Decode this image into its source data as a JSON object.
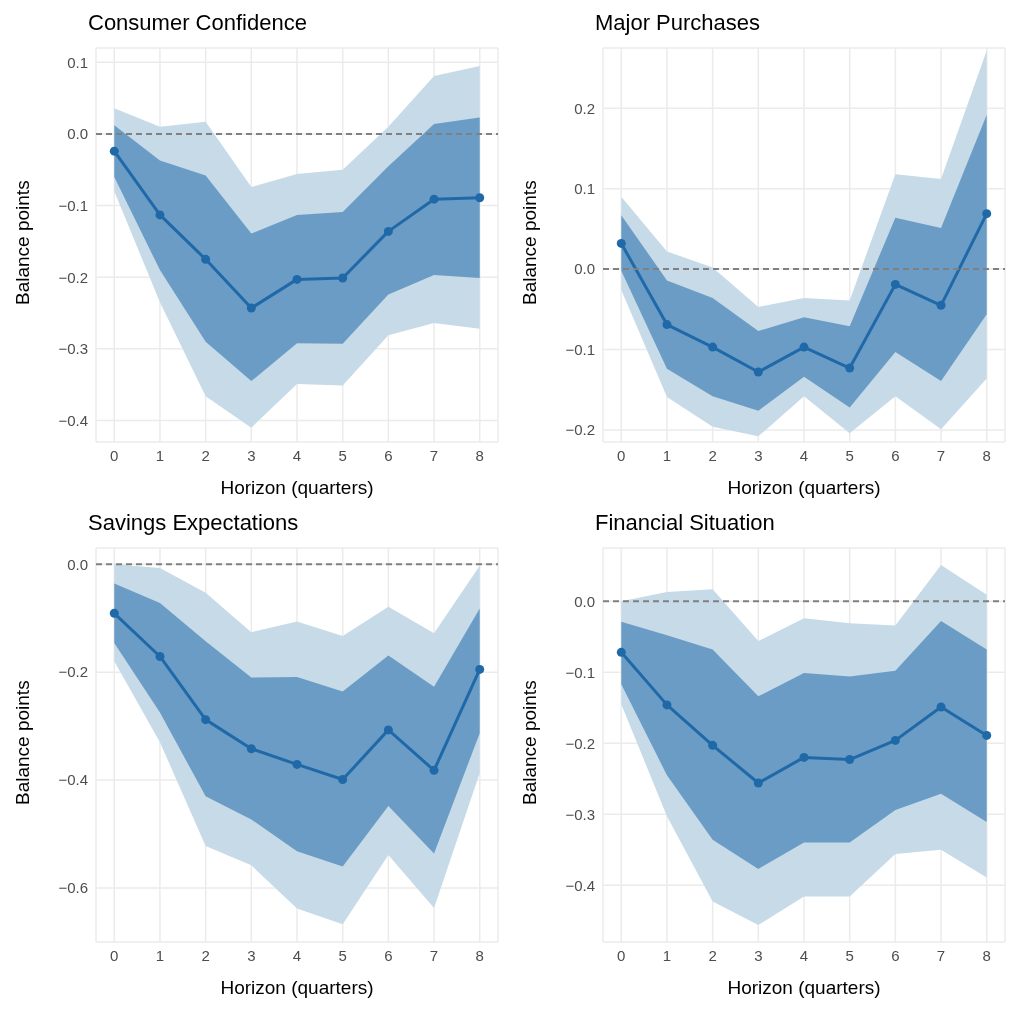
{
  "chart_data": [
    {
      "type": "line",
      "title": "Consumer Confidence",
      "xlabel": "Horizon (quarters)",
      "ylabel": "Balance points",
      "x": [
        0,
        1,
        2,
        3,
        4,
        5,
        6,
        7,
        8
      ],
      "xlim": [
        -0.4,
        8.4
      ],
      "xticks": [
        0,
        1,
        2,
        3,
        4,
        5,
        6,
        7,
        8
      ],
      "ylim": [
        -0.43,
        0.12
      ],
      "yticks": [
        {
          "value": -0.4,
          "label": "−0.4"
        },
        {
          "value": -0.3,
          "label": "−0.3"
        },
        {
          "value": -0.2,
          "label": "−0.2"
        },
        {
          "value": -0.1,
          "label": "−0.1"
        },
        {
          "value": 0,
          "label": "0.0"
        },
        {
          "value": 0.1,
          "label": "0.1"
        }
      ],
      "grid": true,
      "marker": "circle",
      "ref_lines": [
        {
          "axis": "y",
          "value": 0,
          "color": "#808080",
          "line_style": "dashed"
        }
      ],
      "series": [
        {
          "color": "#c6dae8",
          "values": [
            null,
            null,
            null,
            null,
            null,
            null,
            null,
            null,
            null
          ],
          "lower": [
            -0.08,
            -0.235,
            -0.366,
            -0.41,
            -0.349,
            -0.351,
            -0.281,
            -0.264,
            -0.272
          ],
          "upper": [
            0.036,
            0.01,
            0.017,
            -0.074,
            -0.056,
            -0.05,
            0.01,
            0.081,
            0.095
          ]
        },
        {
          "color": "#2069a8",
          "values": [
            -0.024,
            -0.113,
            -0.175,
            -0.243,
            -0.203,
            -0.201,
            -0.136,
            -0.091,
            -0.089
          ],
          "lower": [
            -0.06,
            -0.19,
            -0.29,
            -0.345,
            -0.292,
            -0.293,
            -0.224,
            -0.197,
            -0.201
          ],
          "upper": [
            0.012,
            -0.037,
            -0.058,
            -0.139,
            -0.113,
            -0.109,
            -0.045,
            0.014,
            0.023
          ]
        }
      ]
    },
    {
      "type": "line",
      "title": "Major Purchases",
      "xlabel": "Horizon (quarters)",
      "ylabel": "Balance points",
      "x": [
        0,
        1,
        2,
        3,
        4,
        5,
        6,
        7,
        8
      ],
      "xlim": [
        -0.4,
        8.4
      ],
      "xticks": [
        0,
        1,
        2,
        3,
        4,
        5,
        6,
        7,
        8
      ],
      "ylim": [
        -0.215,
        0.275
      ],
      "yticks": [
        {
          "value": -0.2,
          "label": "−0.2"
        },
        {
          "value": -0.1,
          "label": "−0.1"
        },
        {
          "value": 0,
          "label": "0.0"
        },
        {
          "value": 0.1,
          "label": "0.1"
        },
        {
          "value": 0.2,
          "label": "0.2"
        }
      ],
      "grid": true,
      "marker": "circle",
      "ref_lines": [
        {
          "axis": "y",
          "value": 0,
          "color": "#808080",
          "line_style": "dashed"
        }
      ],
      "series": [
        {
          "color": "#c6dae8",
          "values": [
            null,
            null,
            null,
            null,
            null,
            null,
            null,
            null,
            null
          ],
          "lower": [
            -0.026,
            -0.159,
            -0.196,
            -0.208,
            -0.158,
            -0.204,
            -0.158,
            -0.199,
            -0.136
          ],
          "upper": [
            0.09,
            0.022,
            0.002,
            -0.047,
            -0.036,
            -0.039,
            0.118,
            0.112,
            0.272
          ]
        },
        {
          "color": "#2069a8",
          "values": [
            0.032,
            -0.069,
            -0.097,
            -0.128,
            -0.097,
            -0.123,
            -0.019,
            -0.045,
            0.069
          ],
          "lower": [
            -0.002,
            -0.124,
            -0.158,
            -0.176,
            -0.134,
            -0.172,
            -0.103,
            -0.139,
            -0.056
          ],
          "upper": [
            0.067,
            -0.014,
            -0.036,
            -0.077,
            -0.06,
            -0.071,
            0.064,
            0.051,
            0.192
          ]
        }
      ]
    },
    {
      "type": "line",
      "title": "Savings Expectations",
      "xlabel": "Horizon (quarters)",
      "ylabel": "Balance points",
      "x": [
        0,
        1,
        2,
        3,
        4,
        5,
        6,
        7,
        8
      ],
      "xlim": [
        -0.4,
        8.4
      ],
      "xticks": [
        0,
        1,
        2,
        3,
        4,
        5,
        6,
        7,
        8
      ],
      "ylim": [
        -0.7,
        0.03
      ],
      "yticks": [
        {
          "value": -0.6,
          "label": "−0.6"
        },
        {
          "value": -0.4,
          "label": "−0.4"
        },
        {
          "value": -0.2,
          "label": "−0.2"
        },
        {
          "value": 0,
          "label": "0.0"
        }
      ],
      "grid": true,
      "marker": "circle",
      "ref_lines": [
        {
          "axis": "y",
          "value": 0,
          "color": "#808080",
          "line_style": "dashed"
        }
      ],
      "series": [
        {
          "color": "#c6dae8",
          "values": [
            null,
            null,
            null,
            null,
            null,
            null,
            null,
            null,
            null
          ],
          "lower": [
            -0.18,
            -0.33,
            -0.522,
            -0.558,
            -0.638,
            -0.667,
            -0.539,
            -0.637,
            -0.387
          ],
          "upper": [
            0,
            -0.007,
            -0.053,
            -0.126,
            -0.106,
            -0.133,
            -0.079,
            -0.128,
            -0.003
          ]
        },
        {
          "color": "#2069a8",
          "values": [
            -0.091,
            -0.171,
            -0.288,
            -0.342,
            -0.371,
            -0.399,
            -0.307,
            -0.382,
            -0.195
          ],
          "lower": [
            -0.146,
            -0.275,
            -0.43,
            -0.473,
            -0.532,
            -0.56,
            -0.448,
            -0.536,
            -0.313
          ],
          "upper": [
            -0.036,
            -0.072,
            -0.143,
            -0.21,
            -0.209,
            -0.236,
            -0.169,
            -0.227,
            -0.082
          ]
        }
      ]
    },
    {
      "type": "line",
      "title": "Financial Situation",
      "xlabel": "Horizon (quarters)",
      "ylabel": "Balance points",
      "x": [
        0,
        1,
        2,
        3,
        4,
        5,
        6,
        7,
        8
      ],
      "xlim": [
        -0.4,
        8.4
      ],
      "xticks": [
        0,
        1,
        2,
        3,
        4,
        5,
        6,
        7,
        8
      ],
      "ylim": [
        -0.48,
        0.075
      ],
      "yticks": [
        {
          "value": -0.4,
          "label": "−0.4"
        },
        {
          "value": -0.3,
          "label": "−0.3"
        },
        {
          "value": -0.2,
          "label": "−0.2"
        },
        {
          "value": -0.1,
          "label": "−0.1"
        },
        {
          "value": 0,
          "label": "0.0"
        }
      ],
      "grid": true,
      "marker": "circle",
      "ref_lines": [
        {
          "axis": "y",
          "value": 0,
          "color": "#808080",
          "line_style": "dashed"
        }
      ],
      "series": [
        {
          "color": "#c6dae8",
          "values": [
            null,
            null,
            null,
            null,
            null,
            null,
            null,
            null,
            null
          ],
          "lower": [
            -0.145,
            -0.303,
            -0.423,
            -0.456,
            -0.416,
            -0.416,
            -0.356,
            -0.35,
            -0.389
          ],
          "upper": [
            0,
            0.013,
            0.017,
            -0.056,
            -0.024,
            -0.031,
            -0.034,
            0.051,
            0.009
          ]
        },
        {
          "color": "#2069a8",
          "values": [
            -0.072,
            -0.146,
            -0.203,
            -0.256,
            -0.22,
            -0.223,
            -0.196,
            -0.149,
            -0.189
          ],
          "lower": [
            -0.117,
            -0.245,
            -0.336,
            -0.377,
            -0.34,
            -0.34,
            -0.294,
            -0.271,
            -0.311
          ],
          "upper": [
            -0.029,
            -0.048,
            -0.068,
            -0.134,
            -0.101,
            -0.106,
            -0.098,
            -0.028,
            -0.068
          ]
        }
      ]
    }
  ]
}
